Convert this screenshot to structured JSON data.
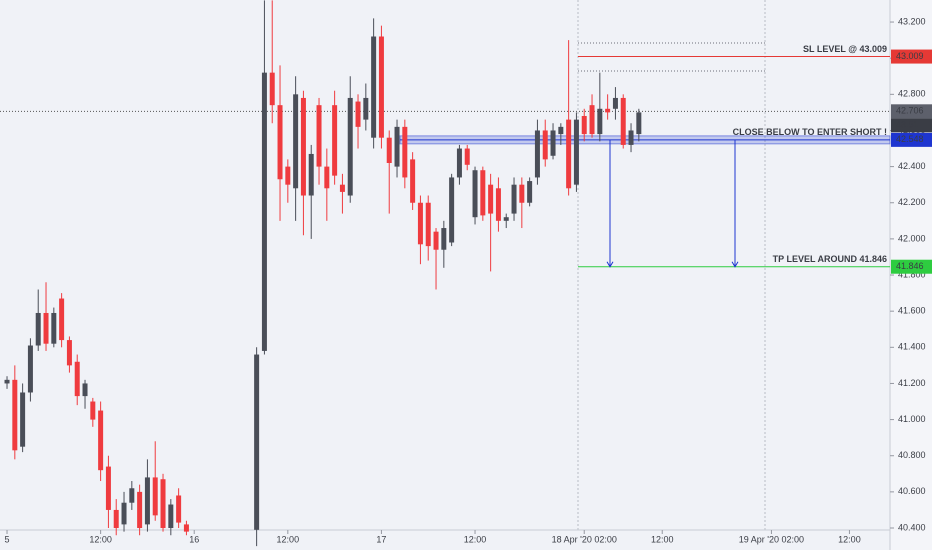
{
  "chart_data": {
    "type": "candlestick",
    "x": [
      0,
      1,
      2,
      3,
      4,
      5,
      6,
      7,
      8,
      9,
      10,
      11,
      12,
      13,
      14,
      15,
      16,
      17,
      18,
      19,
      20,
      21,
      22,
      23,
      32,
      33,
      34,
      35,
      36,
      37,
      38,
      39,
      40,
      41,
      42,
      43,
      44,
      45,
      46,
      47,
      48,
      49,
      50,
      51,
      52,
      53,
      54,
      55,
      56,
      57,
      58,
      59,
      60,
      61,
      62,
      63,
      64,
      65,
      66,
      67,
      68,
      69,
      70,
      71,
      72,
      73,
      74,
      75,
      76,
      77,
      78,
      79,
      80,
      81
    ],
    "open": [
      41.2,
      41.22,
      40.85,
      41.15,
      41.41,
      41.59,
      41.42,
      41.67,
      41.44,
      41.32,
      41.13,
      41.1,
      41.05,
      40.74,
      40.5,
      40.42,
      40.54,
      40.6,
      40.42,
      40.68,
      40.67,
      40.4,
      40.58,
      40.42,
      40.39,
      41.38,
      42.92,
      42.74,
      42.4,
      42.28,
      42.78,
      42.24,
      42.74,
      42.4,
      42.74,
      42.3,
      42.24,
      42.76,
      42.66,
      42.56,
      43.12,
      42.56,
      42.4,
      42.62,
      42.44,
      42.2,
      42.2,
      42.04,
      41.94,
      41.98,
      42.34,
      42.5,
      42.12,
      42.38,
      42.3,
      42.28,
      42.1,
      42.14,
      42.3,
      42.2,
      42.34,
      42.6,
      42.46,
      42.58,
      42.66,
      42.3,
      42.68,
      42.74,
      42.58,
      42.72,
      42.72,
      42.78,
      42.52,
      42.58
    ],
    "high": [
      41.24,
      41.3,
      41.2,
      41.45,
      41.72,
      41.76,
      41.62,
      41.7,
      41.46,
      41.36,
      41.22,
      41.12,
      41.1,
      40.8,
      40.56,
      40.6,
      40.66,
      40.64,
      40.78,
      40.88,
      40.7,
      40.56,
      40.62,
      40.44,
      41.4,
      43.32,
      43.32,
      42.96,
      42.44,
      42.9,
      42.82,
      42.52,
      42.78,
      42.5,
      42.82,
      42.36,
      42.9,
      42.8,
      42.86,
      43.22,
      43.18,
      42.6,
      42.66,
      42.66,
      42.48,
      42.24,
      42.24,
      42.06,
      42.1,
      42.36,
      42.52,
      42.52,
      42.4,
      42.4,
      42.36,
      42.34,
      42.14,
      42.34,
      42.34,
      42.34,
      42.66,
      42.66,
      42.64,
      42.64,
      43.1,
      42.7,
      42.72,
      42.8,
      42.92,
      42.8,
      42.84,
      42.8,
      42.64,
      42.72
    ],
    "low": [
      41.17,
      40.78,
      40.82,
      41.1,
      41.38,
      41.38,
      41.4,
      41.4,
      41.26,
      41.08,
      41.06,
      40.96,
      40.66,
      40.4,
      40.36,
      40.38,
      40.5,
      40.36,
      40.38,
      40.44,
      40.38,
      40.36,
      40.4,
      40.36,
      40.3,
      41.36,
      42.64,
      42.1,
      42.2,
      42.1,
      42.02,
      42.0,
      42.3,
      42.1,
      42.3,
      42.14,
      42.2,
      42.5,
      42.6,
      42.5,
      42.5,
      42.14,
      42.34,
      42.28,
      42.16,
      41.86,
      41.88,
      41.72,
      41.84,
      41.96,
      42.3,
      42.38,
      42.08,
      42.1,
      41.82,
      42.04,
      42.06,
      42.1,
      42.06,
      42.18,
      42.3,
      42.4,
      42.44,
      42.52,
      42.24,
      42.26,
      42.54,
      42.56,
      42.54,
      42.66,
      42.66,
      42.5,
      42.48,
      42.54
    ],
    "close": [
      41.22,
      40.83,
      41.15,
      41.41,
      41.59,
      41.42,
      41.59,
      41.44,
      41.3,
      41.13,
      41.2,
      41.0,
      40.72,
      40.5,
      40.4,
      40.54,
      40.62,
      40.4,
      40.68,
      40.47,
      40.4,
      40.53,
      40.43,
      40.38,
      41.36,
      42.92,
      42.74,
      42.33,
      42.3,
      42.8,
      42.24,
      42.47,
      42.4,
      42.28,
      42.35,
      42.26,
      42.78,
      42.62,
      42.78,
      43.12,
      42.56,
      42.42,
      42.62,
      42.34,
      42.2,
      41.97,
      41.96,
      41.94,
      42.06,
      42.34,
      42.5,
      42.41,
      42.38,
      42.13,
      42.14,
      42.1,
      42.12,
      42.3,
      42.2,
      42.32,
      42.6,
      42.44,
      42.6,
      42.62,
      42.28,
      42.66,
      42.58,
      42.58,
      42.72,
      42.7,
      42.78,
      42.52,
      42.6,
      42.7
    ],
    "up_color": "#4a4e58",
    "down_color": "#ef3b3f",
    "xlim": [
      -0.9,
      113.2
    ],
    "ylim": [
      40.389,
      43.322
    ],
    "xticks": [
      {
        "value": 0,
        "label": "5"
      },
      {
        "value": 12,
        "label": "12:00"
      },
      {
        "value": 24,
        "label": "16"
      },
      {
        "value": 36,
        "label": "12:00"
      },
      {
        "value": 48,
        "label": "17"
      },
      {
        "value": 60,
        "label": "12:00"
      },
      {
        "value": 74,
        "label": "18 Apr '20   02:00"
      },
      {
        "value": 84,
        "label": "12:00"
      },
      {
        "value": 98,
        "label": "19 Apr '20   02:00"
      },
      {
        "value": 108,
        "label": "12:00"
      }
    ],
    "yticks": [
      {
        "value": 40.4,
        "label": "40.400"
      },
      {
        "value": 40.6,
        "label": "40.600"
      },
      {
        "value": 40.8,
        "label": "40.800"
      },
      {
        "value": 41.0,
        "label": "41.000"
      },
      {
        "value": 41.2,
        "label": "41.200"
      },
      {
        "value": 41.4,
        "label": "41.400"
      },
      {
        "value": 41.6,
        "label": "41.600"
      },
      {
        "value": 41.8,
        "label": "41.800"
      },
      {
        "value": 42.0,
        "label": "42.000"
      },
      {
        "value": 42.2,
        "label": "42.200"
      },
      {
        "value": 42.4,
        "label": "42.400"
      },
      {
        "value": 42.6,
        "label": "42.600"
      },
      {
        "value": 42.8,
        "label": "42.800"
      },
      {
        "value": 43.0,
        "label": "43.000"
      },
      {
        "value": 43.2,
        "label": "43.200"
      }
    ],
    "levels": [
      {
        "label": "SL LEVEL @ 43.009",
        "value": 43.009,
        "color": "#e53935"
      },
      {
        "label": "CLOSE BELOW TO ENTER SHORT !",
        "value": 42.548,
        "color": "#1e35d0"
      },
      {
        "label": "TP LEVEL AROUND 41.846",
        "value": 41.846,
        "color": "#2ecc40"
      }
    ],
    "last_price": 42.706,
    "countdown": "43:51"
  }
}
